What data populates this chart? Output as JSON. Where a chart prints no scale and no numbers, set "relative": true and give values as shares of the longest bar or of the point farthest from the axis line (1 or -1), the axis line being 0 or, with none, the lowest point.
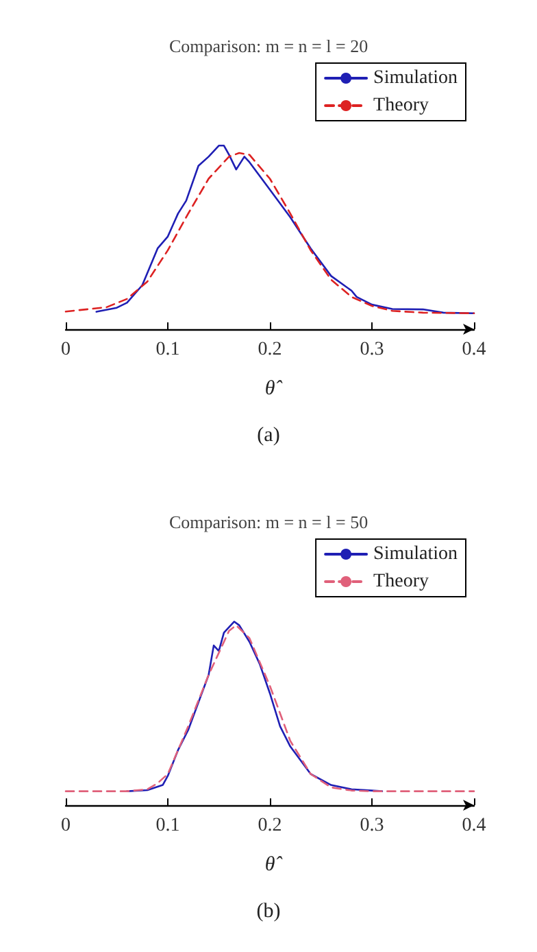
{
  "chart_data": [
    {
      "type": "line",
      "title": "Comparison: m = n = l = 20",
      "xlabel": "θ̂",
      "annotations": [
        "(a)"
      ],
      "relative": true,
      "xlim": [
        0,
        0.4
      ],
      "xticks": [
        0,
        0.1,
        0.2,
        0.3,
        0.4
      ],
      "grid": false,
      "legend": "top right",
      "marker": "none",
      "series": [
        {
          "name": "Simulation",
          "color": "#1f1fb4",
          "line_style": "solid",
          "x": [
            0.03,
            0.05,
            0.06,
            0.075,
            0.09,
            0.1,
            0.11,
            0.118,
            0.13,
            0.14,
            0.15,
            0.155,
            0.16,
            0.167,
            0.175,
            0.18,
            0.2,
            0.22,
            0.24,
            0.26,
            0.28,
            0.285,
            0.3,
            0.32,
            0.35,
            0.37,
            0.4
          ],
          "values": [
            0.095,
            0.117,
            0.144,
            0.24,
            0.44,
            0.505,
            0.63,
            0.7,
            0.89,
            0.94,
            1.0,
            1.0,
            0.95,
            0.87,
            0.94,
            0.91,
            0.76,
            0.61,
            0.44,
            0.29,
            0.21,
            0.176,
            0.134,
            0.11,
            0.108,
            0.09,
            0.087
          ]
        },
        {
          "name": "Theory",
          "color": "#dd2222",
          "line_style": "dashed",
          "x": [
            0,
            0.04,
            0.06,
            0.08,
            0.1,
            0.12,
            0.14,
            0.16,
            0.17,
            0.18,
            0.2,
            0.22,
            0.24,
            0.26,
            0.28,
            0.3,
            0.32,
            0.35,
            0.4
          ],
          "values": [
            0.096,
            0.12,
            0.165,
            0.26,
            0.43,
            0.63,
            0.82,
            0.94,
            0.96,
            0.95,
            0.82,
            0.63,
            0.43,
            0.27,
            0.176,
            0.127,
            0.1,
            0.09,
            0.087
          ]
        }
      ]
    },
    {
      "type": "line",
      "title": "Comparison: m = n = l = 50",
      "xlabel": "θ̂",
      "annotations": [
        "(b)"
      ],
      "relative": true,
      "xlim": [
        0,
        0.4
      ],
      "xticks": [
        0,
        0.1,
        0.2,
        0.3,
        0.4
      ],
      "grid": false,
      "legend": "top right",
      "marker": "none",
      "series": [
        {
          "name": "Simulation",
          "color": "#1f1fb4",
          "line_style": "solid",
          "x": [
            0.06,
            0.08,
            0.095,
            0.1,
            0.11,
            0.12,
            0.13,
            0.14,
            0.145,
            0.15,
            0.155,
            0.165,
            0.17,
            0.18,
            0.19,
            0.2,
            0.21,
            0.22,
            0.24,
            0.26,
            0.28,
            0.3,
            0.31
          ],
          "values": [
            0.076,
            0.082,
            0.11,
            0.16,
            0.3,
            0.41,
            0.56,
            0.71,
            0.87,
            0.84,
            0.94,
            1.0,
            0.98,
            0.89,
            0.77,
            0.61,
            0.43,
            0.32,
            0.17,
            0.11,
            0.087,
            0.08,
            0.076
          ]
        },
        {
          "name": "Theory",
          "color": "#e0607a",
          "line_style": "dashed",
          "x": [
            0,
            0.06,
            0.08,
            0.09,
            0.1,
            0.12,
            0.14,
            0.16,
            0.167,
            0.18,
            0.2,
            0.22,
            0.24,
            0.26,
            0.28,
            0.3,
            0.4
          ],
          "values": [
            0.076,
            0.076,
            0.087,
            0.12,
            0.17,
            0.43,
            0.71,
            0.95,
            0.98,
            0.91,
            0.65,
            0.35,
            0.17,
            0.097,
            0.08,
            0.076,
            0.076
          ]
        }
      ]
    }
  ]
}
